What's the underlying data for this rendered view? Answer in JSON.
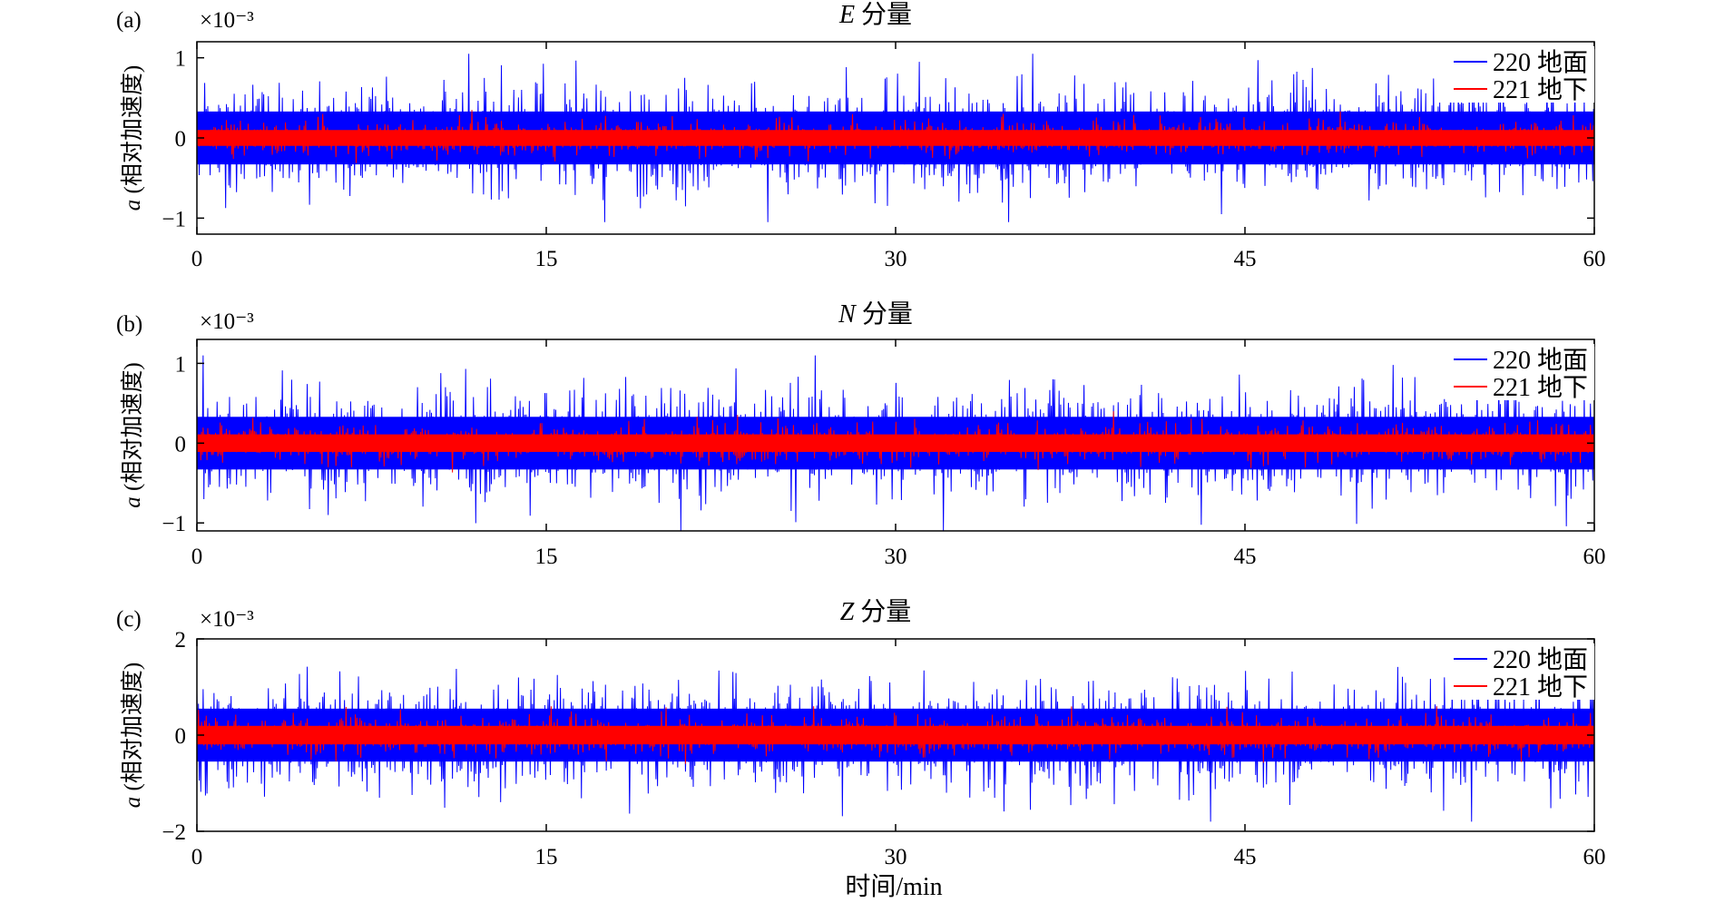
{
  "chart_data": [
    {
      "panel": "(a)",
      "type": "line",
      "title": "E 分量",
      "ylabel": "a (相对加速度)",
      "y_multiplier": "×10⁻³",
      "xlim": [
        0,
        60
      ],
      "ylim": [
        -1.2,
        1.2
      ],
      "xticks": [
        0,
        15,
        30,
        45,
        60
      ],
      "yticks": [
        -1,
        0,
        1
      ],
      "legend_position": "top-right",
      "series": [
        {
          "name": "220 地面",
          "color": "#0000ff",
          "peak_amplitude": 1.05,
          "typical_amplitude": 0.6
        },
        {
          "name": "221 地下",
          "color": "#ff0000",
          "peak_amplitude": 0.35,
          "typical_amplitude": 0.18
        }
      ]
    },
    {
      "panel": "(b)",
      "type": "line",
      "title": "N 分量",
      "ylabel": "a (相对加速度)",
      "y_multiplier": "×10⁻³",
      "xlim": [
        0,
        60
      ],
      "ylim": [
        -1.1,
        1.3
      ],
      "xticks": [
        0,
        15,
        30,
        45,
        60
      ],
      "yticks": [
        -1,
        0,
        1
      ],
      "legend_position": "top-right",
      "series": [
        {
          "name": "220 地面",
          "color": "#0000ff",
          "peak_amplitude": 1.1,
          "typical_amplitude": 0.6
        },
        {
          "name": "221 地下",
          "color": "#ff0000",
          "peak_amplitude": 0.4,
          "typical_amplitude": 0.2
        }
      ]
    },
    {
      "panel": "(c)",
      "type": "line",
      "title": "Z 分量",
      "ylabel": "a (相对加速度)",
      "y_multiplier": "×10⁻³",
      "xlim": [
        0,
        60
      ],
      "ylim": [
        -2,
        2
      ],
      "xticks": [
        0,
        15,
        30,
        45,
        60
      ],
      "yticks": [
        -2,
        0,
        2
      ],
      "legend_position": "top-right",
      "series": [
        {
          "name": "220 地面",
          "color": "#0000ff",
          "peak_amplitude": 1.8,
          "typical_amplitude": 1.0
        },
        {
          "name": "221 地下",
          "color": "#ff0000",
          "peak_amplitude": 0.6,
          "typical_amplitude": 0.35
        }
      ]
    }
  ],
  "xlabel": "时间/min"
}
